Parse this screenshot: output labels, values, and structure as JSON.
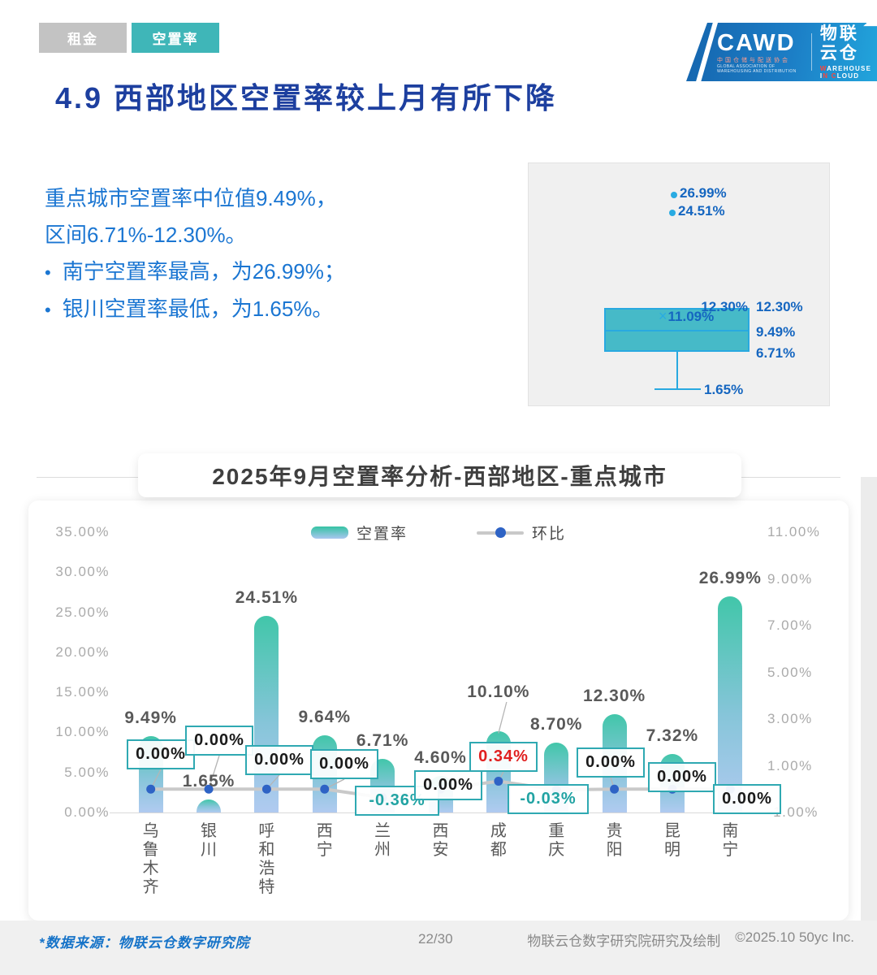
{
  "tabs": [
    {
      "label": "租金",
      "active": false
    },
    {
      "label": "空置率",
      "active": true
    }
  ],
  "logo": {
    "org": "CAWD",
    "org_sub": "中国仓储与配送协会",
    "org_sub2": "GLOBAL ASSOCIATION OF WAREHOUSING AND DISTRIBUTION",
    "brand": "物联云仓",
    "brand_sub_parts": [
      {
        "t": "W",
        "hl": true
      },
      {
        "t": "AREHOUSE ",
        "hl": false
      },
      {
        "t": "I",
        "hl": false
      },
      {
        "t": "N",
        "hl": true
      },
      {
        "t": " ",
        "hl": false
      },
      {
        "t": "C",
        "hl": true
      },
      {
        "t": "LOUD",
        "hl": false
      }
    ],
    "icons": {
      "cloud": "☁",
      "arrow": "↗"
    }
  },
  "page_title": "4.9 西部地区空置率较上月有所下降",
  "summary": {
    "line1": "重点城市空置率中位值9.49%，",
    "line2": "区间6.71%-12.30%。",
    "bullets": [
      "南宁空置率最高，为26.99%；",
      "银川空置率最低，为1.65%。"
    ]
  },
  "chart_data": [
    {
      "type": "boxplot",
      "title": "",
      "stats": {
        "min": 1.65,
        "q1": 6.71,
        "median": 9.49,
        "q3": 12.3,
        "whisker_top": 12.3,
        "mean": 11.09,
        "outliers": [
          26.99,
          24.51
        ]
      },
      "labels": {
        "outlier1": "26.99%",
        "outlier2": "24.51%",
        "q3_inner": "12.30%",
        "q3": "12.30%",
        "median": "9.49%",
        "q1": "6.71%",
        "min": "1.65%",
        "mean": "11.09%",
        "mean_marker": "×"
      }
    },
    {
      "type": "bar",
      "title": "2025年9月空置率分析-西部地区-重点城市",
      "categories": [
        "乌鲁木齐",
        "银川",
        "呼和浩特",
        "西宁",
        "兰州",
        "西安",
        "成都",
        "重庆",
        "贵阳",
        "昆明",
        "南宁"
      ],
      "series": [
        {
          "name": "空置率",
          "type": "bar",
          "axis": "left",
          "values": [
            9.49,
            1.65,
            24.51,
            9.64,
            6.71,
            4.6,
            10.1,
            8.7,
            12.3,
            7.32,
            26.99
          ],
          "labels": [
            "9.49%",
            "1.65%",
            "24.51%",
            "9.64%",
            "6.71%",
            "4.60%",
            "10.10%",
            "8.70%",
            "12.30%",
            "7.32%",
            "26.99%"
          ]
        },
        {
          "name": "环比",
          "type": "line",
          "axis": "right",
          "values": [
            0.0,
            0.0,
            0.0,
            0.0,
            -0.36,
            0.0,
            0.34,
            -0.03,
            0.0,
            0.0,
            0.0
          ],
          "labels": [
            "0.00%",
            "0.00%",
            "0.00%",
            "0.00%",
            "-0.36%",
            "0.00%",
            "0.34%",
            "-0.03%",
            "0.00%",
            "0.00%",
            "0.00%"
          ]
        }
      ],
      "left_axis": {
        "min": 0,
        "max": 35,
        "ticks": [
          "35.00%",
          "30.00%",
          "25.00%",
          "20.00%",
          "15.00%",
          "10.00%",
          "5.00%",
          "0.00%"
        ]
      },
      "right_axis": {
        "min": -1,
        "max": 11,
        "ticks": [
          "11.00%",
          "9.00%",
          "7.00%",
          "5.00%",
          "3.00%",
          "1.00%",
          "-1.00%"
        ]
      },
      "legend_position": "top",
      "grid": false
    }
  ],
  "colors": {
    "accent_teal": "#3fb6b8",
    "callout_border": "#2fa9b2",
    "positive_red": "#e01f1f",
    "negative_teal": "#21a3a3",
    "bar_top": "#31c1a2",
    "bar_bottom": "#a9c6ef",
    "line_gray": "#c9c9c9",
    "dot_blue": "#2e63c5",
    "box_fill": "#46bac8",
    "box_stroke": "#29a9e0",
    "blue_text": "#1b76d2",
    "title_blue": "#1d3f9f"
  },
  "footer": {
    "source": "*数据来源：物联云仓数字研究院",
    "page": "22/30",
    "credit": "物联云仓数字研究院研究及绘制",
    "copyright": "©2025.10 50yc Inc."
  }
}
